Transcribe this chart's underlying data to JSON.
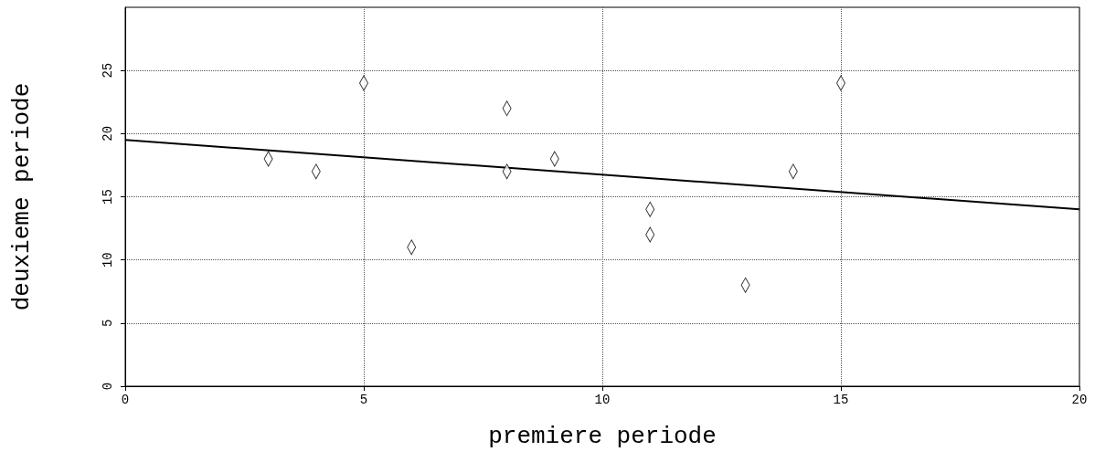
{
  "chart_data": {
    "type": "scatter",
    "xlabel": "premiere periode",
    "ylabel": "deuxieme periode",
    "xlim": [
      0,
      20
    ],
    "xticks": [
      0,
      5,
      10,
      15,
      20
    ],
    "ylim": [
      0,
      30
    ],
    "yticks": [
      0,
      5,
      10,
      15,
      20,
      25
    ],
    "grid": true,
    "series": [
      {
        "color": "#000000",
        "marker": "diamond",
        "x": [
          3,
          4,
          5,
          6,
          8,
          8,
          9,
          11,
          11,
          13,
          14,
          15
        ],
        "values": [
          18,
          17,
          24,
          11,
          22,
          17,
          18,
          14,
          12,
          8,
          17,
          24
        ]
      },
      {
        "type": "line",
        "color": "#000000",
        "x": [
          0,
          20
        ],
        "values": [
          19.5,
          14
        ]
      }
    ]
  }
}
